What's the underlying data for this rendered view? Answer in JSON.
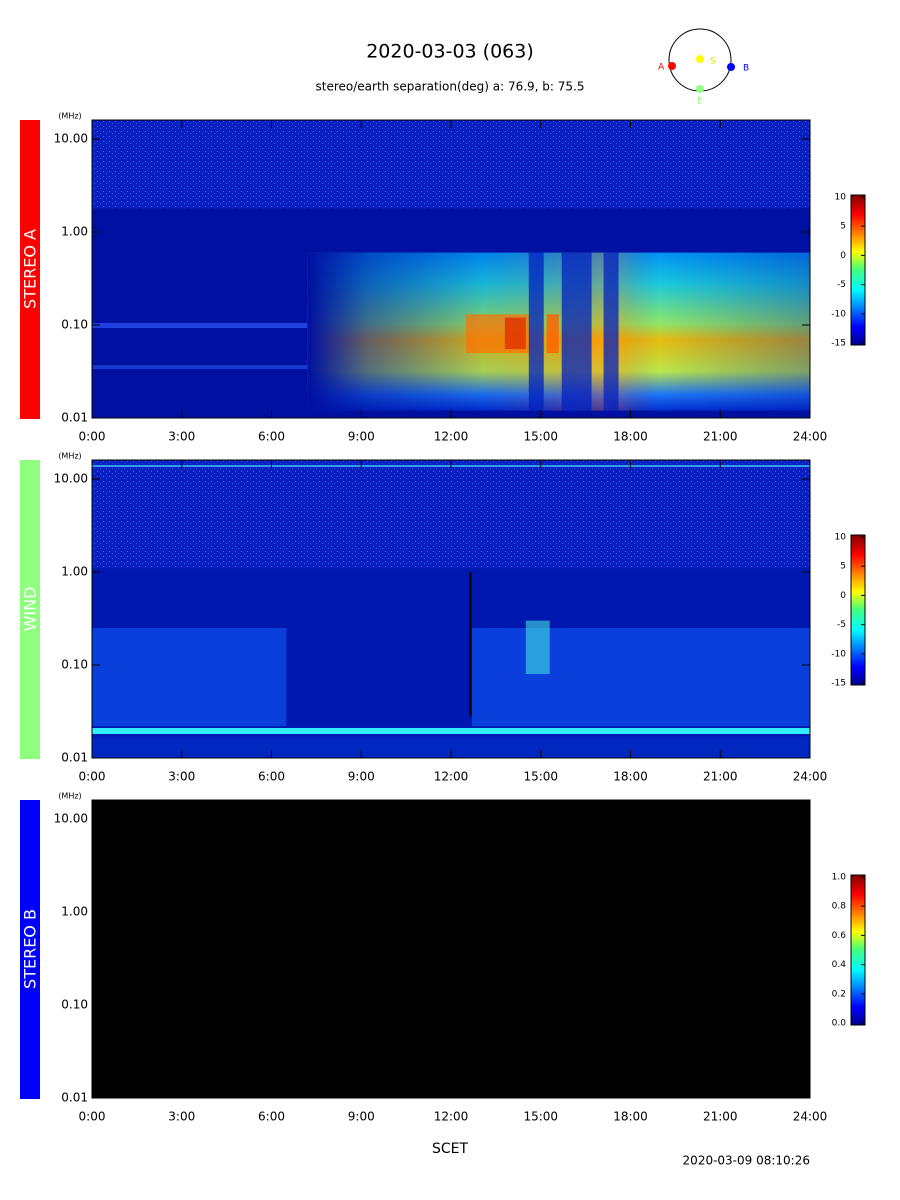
{
  "page": {
    "title": "2020-03-03 (063)",
    "subtitle": "stereo/earth separation(deg) a:  76.9, b:  75.5",
    "orbit_labels": [
      "A",
      "S",
      "B",
      "E"
    ],
    "x_label": "SCET",
    "timestamp": "2020-03-09 08:10:26"
  },
  "chart_data": [
    {
      "type": "spectrogram",
      "label": "STEREO A",
      "color": "#ff0000",
      "y_unit": "(MHz)",
      "log_y": true,
      "xlim": [
        0,
        24
      ],
      "xticks": [
        {
          "value": 0,
          "label": "0:00"
        },
        {
          "value": 3,
          "label": "3:00"
        },
        {
          "value": 6,
          "label": "6:00"
        },
        {
          "value": 9,
          "label": "9:00"
        },
        {
          "value": 12,
          "label": "12:00"
        },
        {
          "value": 15,
          "label": "15:00"
        },
        {
          "value": 18,
          "label": "18:00"
        },
        {
          "value": 21,
          "label": "21:00"
        },
        {
          "value": 24,
          "label": "24:00"
        }
      ],
      "ylim": [
        0.01,
        16
      ],
      "yticks": [
        0.01,
        {
          "value": 0.1,
          "label": "0.10"
        },
        {
          "value": 1,
          "label": "1.00"
        },
        {
          "value": 10,
          "label": "10.00"
        }
      ],
      "zlim": [
        -15,
        10
      ],
      "zticks": [
        10,
        5,
        0,
        -5,
        -10,
        -15
      ]
    },
    {
      "type": "spectrogram",
      "label": "WIND",
      "color": "#90ff80",
      "y_unit": "(MHz)",
      "log_y": true,
      "xlim": [
        0,
        24
      ],
      "xticks": [
        {
          "value": 0,
          "label": "0:00"
        },
        {
          "value": 3,
          "label": "3:00"
        },
        {
          "value": 6,
          "label": "6:00"
        },
        {
          "value": 9,
          "label": "9:00"
        },
        {
          "value": 12,
          "label": "12:00"
        },
        {
          "value": 15,
          "label": "15:00"
        },
        {
          "value": 18,
          "label": "18:00"
        },
        {
          "value": 21,
          "label": "21:00"
        },
        {
          "value": 24,
          "label": "24:00"
        }
      ],
      "ylim": [
        0.01,
        16
      ],
      "yticks": [
        0.01,
        {
          "value": 0.1,
          "label": "0.10"
        },
        {
          "value": 1,
          "label": "1.00"
        },
        {
          "value": 10,
          "label": "10.00"
        }
      ],
      "zlim": [
        -15,
        10
      ],
      "zticks": [
        10,
        5,
        0,
        -5,
        -10,
        -15
      ]
    },
    {
      "type": "spectrogram",
      "label": "STEREO B",
      "color": "#0000ff",
      "y_unit": "(MHz)",
      "log_y": true,
      "xlim": [
        0,
        24
      ],
      "xticks": [
        {
          "value": 0,
          "label": "0:00"
        },
        {
          "value": 3,
          "label": "3:00"
        },
        {
          "value": 6,
          "label": "6:00"
        },
        {
          "value": 9,
          "label": "9:00"
        },
        {
          "value": 12,
          "label": "12:00"
        },
        {
          "value": 15,
          "label": "15:00"
        },
        {
          "value": 18,
          "label": "18:00"
        },
        {
          "value": 21,
          "label": "21:00"
        },
        {
          "value": 24,
          "label": "24:00"
        }
      ],
      "ylim": [
        0.01,
        16
      ],
      "yticks": [
        0.01,
        {
          "value": 0.1,
          "label": "0.10"
        },
        {
          "value": 1,
          "label": "1.00"
        },
        {
          "value": 10,
          "label": "10.00"
        }
      ],
      "zlim": [
        0,
        1
      ],
      "zticks": [
        {
          "value": 1,
          "label": "1.0"
        },
        {
          "value": 0.8,
          "label": "0.8"
        },
        {
          "value": 0.6,
          "label": "0.6"
        },
        {
          "value": 0.4,
          "label": "0.4"
        },
        {
          "value": 0.2,
          "label": "0.2"
        },
        {
          "value": 0,
          "label": "0.0"
        }
      ]
    }
  ]
}
